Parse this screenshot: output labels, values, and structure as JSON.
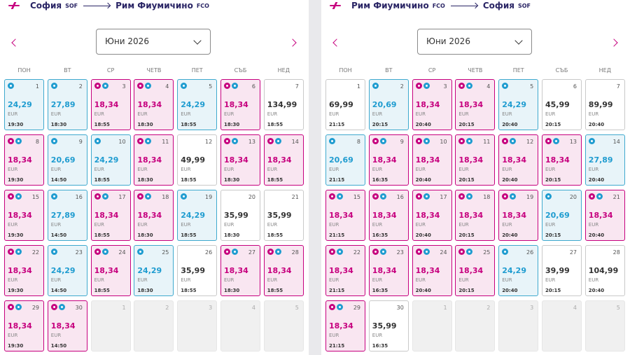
{
  "panels": [
    {
      "route": {
        "from": "София",
        "from_code": "SOF",
        "to": "Рим Фиумичино",
        "to_code": "FCO"
      },
      "month": "Юни 2026",
      "weekdays": [
        "ПОН",
        "ВТ",
        "СР",
        "ЧЕТВ",
        "ПЕТ",
        "СЪБ",
        "НЕД"
      ],
      "days": [
        {
          "day": "1",
          "price": "24,29",
          "currency": "EUR",
          "time": "19:30",
          "kind": "discount"
        },
        {
          "day": "2",
          "price": "27,89",
          "currency": "EUR",
          "time": "18:30",
          "kind": "discount"
        },
        {
          "day": "3",
          "price": "18,34",
          "currency": "EUR",
          "time": "18:55",
          "kind": "club"
        },
        {
          "day": "4",
          "price": "18,34",
          "currency": "EUR",
          "time": "18:30",
          "kind": "club"
        },
        {
          "day": "5",
          "price": "24,29",
          "currency": "EUR",
          "time": "18:55",
          "kind": "discount"
        },
        {
          "day": "6",
          "price": "18,34",
          "currency": "EUR",
          "time": "18:30",
          "kind": "club"
        },
        {
          "day": "7",
          "price": "134,99",
          "currency": "EUR",
          "time": "18:55",
          "kind": "regular"
        },
        {
          "day": "8",
          "price": "18,34",
          "currency": "EUR",
          "time": "19:30",
          "kind": "club"
        },
        {
          "day": "9",
          "price": "20,69",
          "currency": "EUR",
          "time": "14:50",
          "kind": "discount"
        },
        {
          "day": "10",
          "price": "24,29",
          "currency": "EUR",
          "time": "18:55",
          "kind": "discount"
        },
        {
          "day": "11",
          "price": "18,34",
          "currency": "EUR",
          "time": "18:30",
          "kind": "club"
        },
        {
          "day": "12",
          "price": "49,99",
          "currency": "EUR",
          "time": "18:55",
          "kind": "regular"
        },
        {
          "day": "13",
          "price": "18,34",
          "currency": "EUR",
          "time": "18:30",
          "kind": "club"
        },
        {
          "day": "14",
          "price": "18,34",
          "currency": "EUR",
          "time": "18:55",
          "kind": "club"
        },
        {
          "day": "15",
          "price": "18,34",
          "currency": "EUR",
          "time": "19:30",
          "kind": "club"
        },
        {
          "day": "16",
          "price": "27,89",
          "currency": "EUR",
          "time": "14:50",
          "kind": "discount"
        },
        {
          "day": "17",
          "price": "18,34",
          "currency": "EUR",
          "time": "18:55",
          "kind": "club"
        },
        {
          "day": "18",
          "price": "18,34",
          "currency": "EUR",
          "time": "18:30",
          "kind": "club"
        },
        {
          "day": "19",
          "price": "24,29",
          "currency": "EUR",
          "time": "18:55",
          "kind": "discount"
        },
        {
          "day": "20",
          "price": "35,99",
          "currency": "EUR",
          "time": "18:30",
          "kind": "regular"
        },
        {
          "day": "21",
          "price": "35,99",
          "currency": "EUR",
          "time": "18:55",
          "kind": "regular"
        },
        {
          "day": "22",
          "price": "18,34",
          "currency": "EUR",
          "time": "19:30",
          "kind": "club"
        },
        {
          "day": "23",
          "price": "24,29",
          "currency": "EUR",
          "time": "14:50",
          "kind": "discount"
        },
        {
          "day": "24",
          "price": "18,34",
          "currency": "EUR",
          "time": "18:55",
          "kind": "club"
        },
        {
          "day": "25",
          "price": "24,29",
          "currency": "EUR",
          "time": "18:30",
          "kind": "discount"
        },
        {
          "day": "26",
          "price": "35,99",
          "currency": "EUR",
          "time": "18:55",
          "kind": "regular"
        },
        {
          "day": "27",
          "price": "18,34",
          "currency": "EUR",
          "time": "18:30",
          "kind": "club"
        },
        {
          "day": "28",
          "price": "18,34",
          "currency": "EUR",
          "time": "18:55",
          "kind": "club"
        },
        {
          "day": "29",
          "price": "18,34",
          "currency": "EUR",
          "time": "19:30",
          "kind": "club"
        },
        {
          "day": "30",
          "price": "18,34",
          "currency": "EUR",
          "time": "14:50",
          "kind": "club"
        },
        {
          "day": "1",
          "kind": "disabled"
        },
        {
          "day": "2",
          "kind": "disabled"
        },
        {
          "day": "3",
          "kind": "disabled"
        },
        {
          "day": "4",
          "kind": "disabled"
        },
        {
          "day": "5",
          "kind": "disabled"
        }
      ]
    },
    {
      "route": {
        "from": "Рим Фиумичино",
        "from_code": "FCO",
        "to": "София",
        "to_code": "SOF"
      },
      "month": "Юни 2026",
      "weekdays": [
        "ПОН",
        "ВТ",
        "СР",
        "ЧЕТВ",
        "ПЕТ",
        "СЪБ",
        "НЕД"
      ],
      "days": [
        {
          "day": "1",
          "price": "69,99",
          "currency": "EUR",
          "time": "21:15",
          "kind": "regular"
        },
        {
          "day": "2",
          "price": "20,69",
          "currency": "EUR",
          "time": "20:15",
          "kind": "discount"
        },
        {
          "day": "3",
          "price": "18,34",
          "currency": "EUR",
          "time": "20:40",
          "kind": "club"
        },
        {
          "day": "4",
          "price": "18,34",
          "currency": "EUR",
          "time": "20:15",
          "kind": "club"
        },
        {
          "day": "5",
          "price": "24,29",
          "currency": "EUR",
          "time": "20:40",
          "kind": "discount"
        },
        {
          "day": "6",
          "price": "45,99",
          "currency": "EUR",
          "time": "20:15",
          "kind": "regular"
        },
        {
          "day": "7",
          "price": "89,99",
          "currency": "EUR",
          "time": "20:40",
          "kind": "regular"
        },
        {
          "day": "8",
          "price": "20,69",
          "currency": "EUR",
          "time": "21:15",
          "kind": "discount"
        },
        {
          "day": "9",
          "price": "18,34",
          "currency": "EUR",
          "time": "16:35",
          "kind": "club"
        },
        {
          "day": "10",
          "price": "18,34",
          "currency": "EUR",
          "time": "20:40",
          "kind": "club"
        },
        {
          "day": "11",
          "price": "18,34",
          "currency": "EUR",
          "time": "20:15",
          "kind": "club"
        },
        {
          "day": "12",
          "price": "18,34",
          "currency": "EUR",
          "time": "20:40",
          "kind": "club"
        },
        {
          "day": "13",
          "price": "18,34",
          "currency": "EUR",
          "time": "20:15",
          "kind": "club"
        },
        {
          "day": "14",
          "price": "27,89",
          "currency": "EUR",
          "time": "20:40",
          "kind": "discount"
        },
        {
          "day": "15",
          "price": "18,34",
          "currency": "EUR",
          "time": "21:15",
          "kind": "club"
        },
        {
          "day": "16",
          "price": "18,34",
          "currency": "EUR",
          "time": "16:35",
          "kind": "club"
        },
        {
          "day": "17",
          "price": "18,34",
          "currency": "EUR",
          "time": "20:40",
          "kind": "club"
        },
        {
          "day": "18",
          "price": "18,34",
          "currency": "EUR",
          "time": "20:15",
          "kind": "club"
        },
        {
          "day": "19",
          "price": "18,34",
          "currency": "EUR",
          "time": "20:40",
          "kind": "club"
        },
        {
          "day": "20",
          "price": "20,69",
          "currency": "EUR",
          "time": "20:15",
          "kind": "discount"
        },
        {
          "day": "21",
          "price": "18,34",
          "currency": "EUR",
          "time": "20:40",
          "kind": "club"
        },
        {
          "day": "22",
          "price": "18,34",
          "currency": "EUR",
          "time": "21:15",
          "kind": "club"
        },
        {
          "day": "23",
          "price": "18,34",
          "currency": "EUR",
          "time": "16:35",
          "kind": "club"
        },
        {
          "day": "24",
          "price": "18,34",
          "currency": "EUR",
          "time": "20:40",
          "kind": "club"
        },
        {
          "day": "25",
          "price": "18,34",
          "currency": "EUR",
          "time": "20:15",
          "kind": "club"
        },
        {
          "day": "26",
          "price": "24,29",
          "currency": "EUR",
          "time": "20:40",
          "kind": "discount"
        },
        {
          "day": "27",
          "price": "39,99",
          "currency": "EUR",
          "time": "20:15",
          "kind": "regular"
        },
        {
          "day": "28",
          "price": "104,99",
          "currency": "EUR",
          "time": "20:40",
          "kind": "regular"
        },
        {
          "day": "29",
          "price": "18,34",
          "currency": "EUR",
          "time": "21:15",
          "kind": "club"
        },
        {
          "day": "30",
          "price": "35,99",
          "currency": "EUR",
          "time": "16:35",
          "kind": "regular"
        },
        {
          "day": "1",
          "kind": "disabled"
        },
        {
          "day": "2",
          "kind": "disabled"
        },
        {
          "day": "3",
          "kind": "disabled"
        },
        {
          "day": "4",
          "kind": "disabled"
        },
        {
          "day": "5",
          "kind": "disabled"
        }
      ]
    }
  ]
}
